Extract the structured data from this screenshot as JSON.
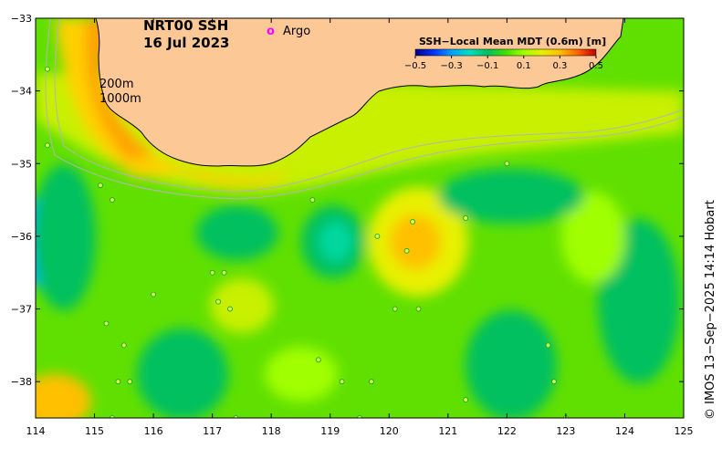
{
  "title": {
    "line1": "NRT00 SSH",
    "line2": "16 Jul 2023"
  },
  "argo_legend": {
    "marker": "o",
    "label": "Argo",
    "color": "#ff00ff"
  },
  "colorbar": {
    "title": "SSH−Local Mean MDT (0.6m) [m]",
    "ticks": [
      "−0.5",
      "−0.3",
      "−0.1",
      "0.1",
      "0.3",
      "0.5"
    ],
    "tick_values": [
      -0.5,
      -0.3,
      -0.1,
      0.1,
      0.3,
      0.5
    ],
    "colors": [
      "#00007f",
      "#0033ff",
      "#00a0ff",
      "#00e0c0",
      "#00c060",
      "#40e000",
      "#a0ff00",
      "#e8f000",
      "#ffc000",
      "#ff6000",
      "#c00000"
    ]
  },
  "isobaths": {
    "shallow": "200m",
    "deep": "1000m"
  },
  "credit": "© IMOS 13−Sep−2025 14:14 Hobart",
  "axes": {
    "x_ticks": [
      "114",
      "115",
      "116",
      "117",
      "118",
      "119",
      "120",
      "121",
      "122",
      "123",
      "124",
      "125"
    ],
    "x_values": [
      114,
      115,
      116,
      117,
      118,
      119,
      120,
      121,
      122,
      123,
      124,
      125
    ],
    "y_ticks": [
      "−33",
      "−34",
      "−35",
      "−36",
      "−37",
      "−38"
    ],
    "y_values": [
      -33,
      -34,
      -35,
      -36,
      -37,
      -38
    ],
    "lon_range": [
      114,
      125
    ],
    "lat_range": [
      -38.5,
      -33
    ]
  },
  "colors": {
    "land": "#fcc896",
    "coast": "#000000",
    "isobath": "#b4b4b4",
    "background_ssh": "#60e000"
  }
}
